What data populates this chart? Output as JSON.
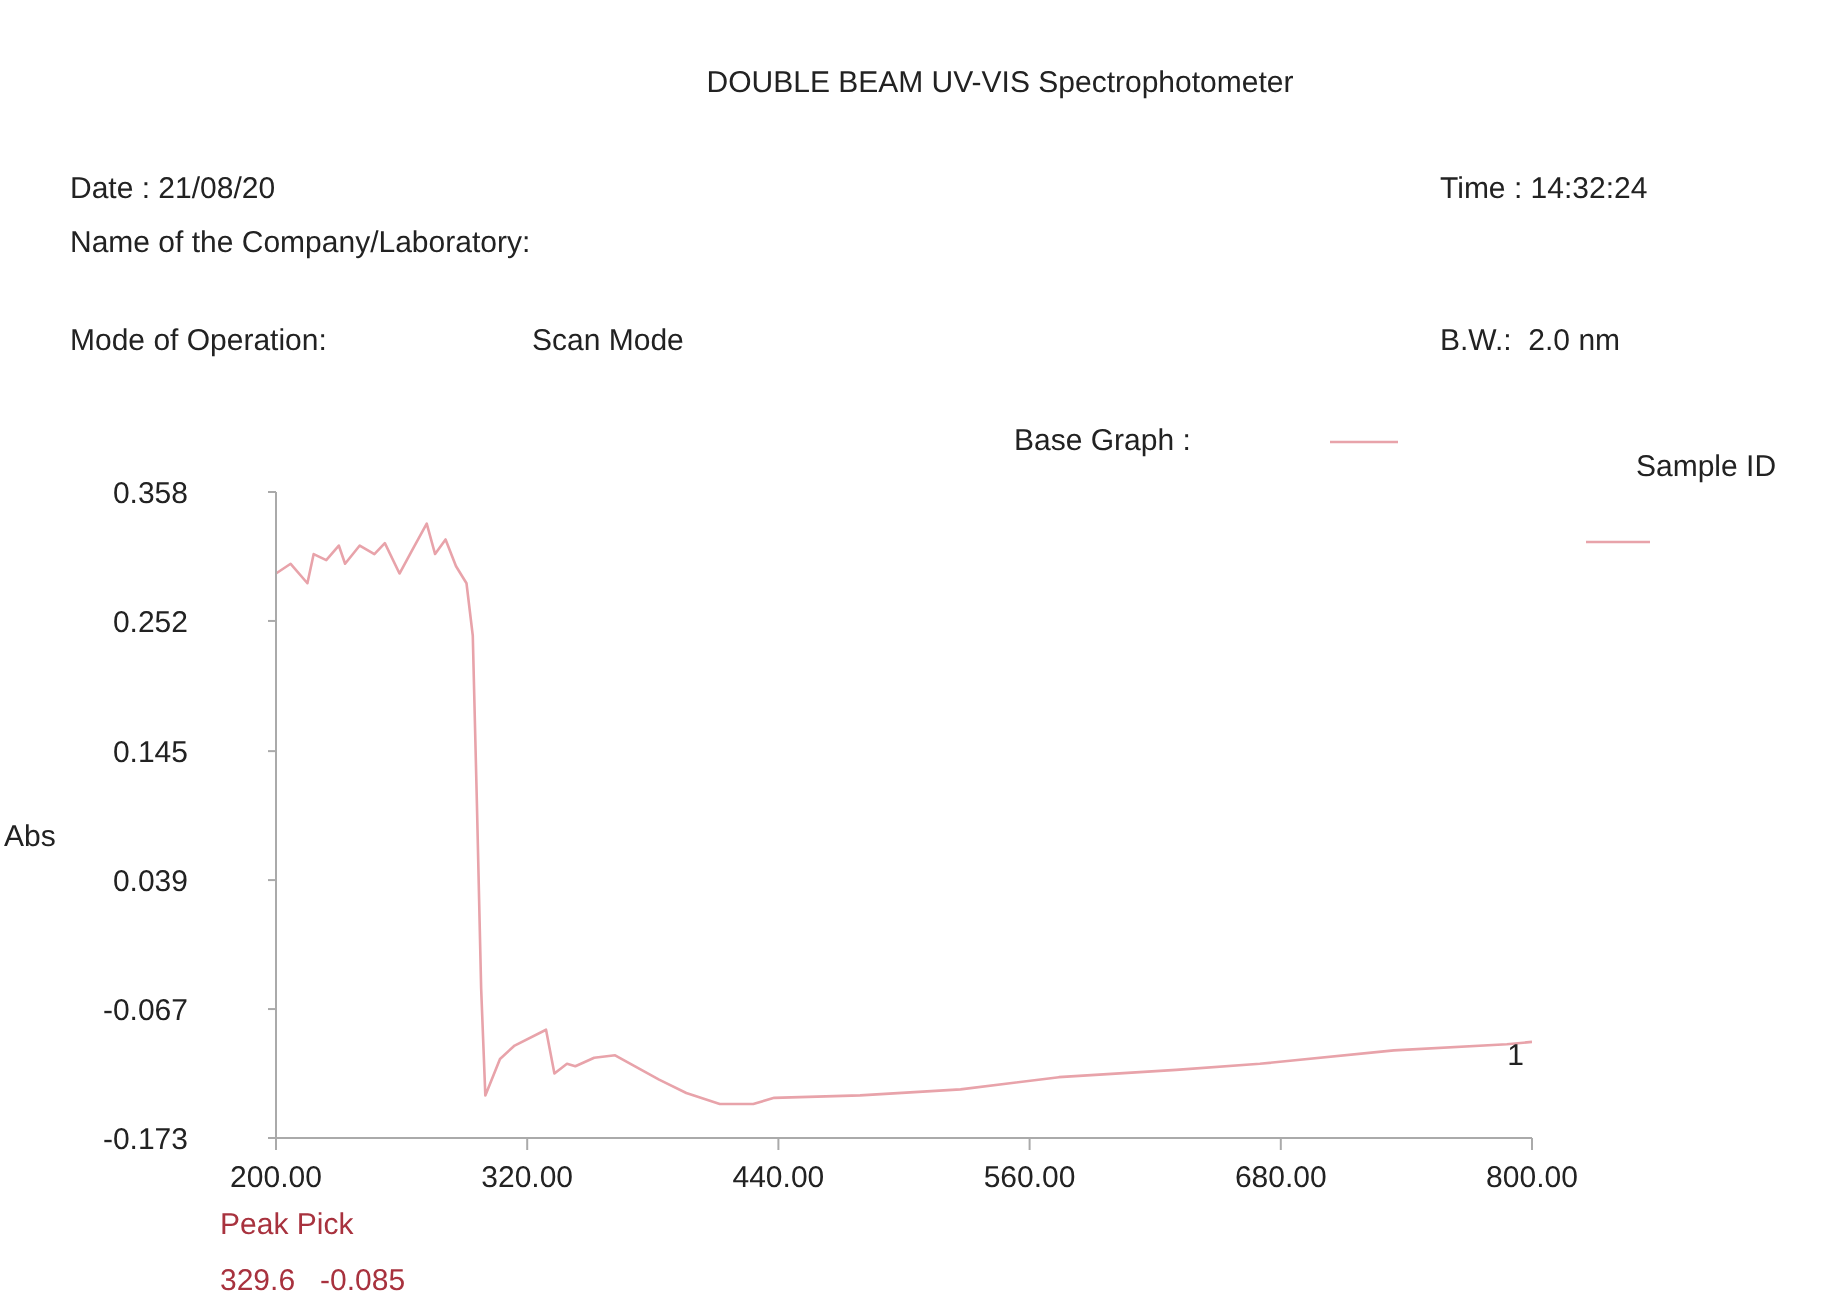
{
  "chart_data": {
    "type": "line",
    "title": "DOUBLE BEAM UV-VIS Spectrophotometer",
    "ylabel": "Abs",
    "annotations": [
      "Date : 21/08/20",
      "Name of the Company/Laboratory:",
      "Mode of Operation:",
      "Scan Mode",
      "Time : 14:32:24",
      "B.W.:  2.0 nm",
      "Base Graph :",
      "Sample ID",
      "Peak Pick",
      "329.6   -0.085",
      {
        "text": "1",
        "x": 800,
        "y": -0.094
      }
    ],
    "series": [
      {
        "color": "#e8a3aa",
        "x": [
          200,
          207,
          215,
          218,
          224,
          230,
          233,
          240,
          247,
          252,
          259,
          265,
          272,
          276,
          281,
          286,
          291,
          294,
          296,
          298,
          300,
          307,
          314,
          329,
          333,
          339,
          343,
          352,
          362,
          383,
          396,
          412,
          428,
          438,
          479,
          527,
          574,
          630,
          670,
          734,
          788,
          800
        ],
        "values": [
          0.291,
          0.299,
          0.283,
          0.307,
          0.302,
          0.314,
          0.299,
          0.314,
          0.307,
          0.316,
          0.291,
          0.31,
          0.332,
          0.307,
          0.319,
          0.297,
          0.283,
          0.24,
          0.1,
          -0.05,
          -0.138,
          -0.108,
          -0.097,
          -0.084,
          -0.12,
          -0.112,
          -0.114,
          -0.107,
          -0.105,
          -0.125,
          -0.136,
          -0.145,
          -0.145,
          -0.14,
          -0.138,
          -0.133,
          -0.123,
          -0.117,
          -0.112,
          -0.101,
          -0.096,
          -0.094
        ]
      }
    ],
    "xlim": [
      200,
      800
    ],
    "xticks": [
      {
        "value": 200,
        "label": "200.00"
      },
      {
        "value": 320,
        "label": "320.00"
      },
      {
        "value": 440,
        "label": "440.00"
      },
      {
        "value": 560,
        "label": "560.00"
      },
      {
        "value": 680,
        "label": "680.00"
      },
      {
        "value": 800,
        "label": "800.00"
      }
    ],
    "ylim": [
      -0.173,
      0.358
    ],
    "yticks": [
      -0.173,
      -0.067,
      0.039,
      0.145,
      0.252,
      0.358
    ],
    "grid": false,
    "marker": "none",
    "line_style": "solid"
  }
}
